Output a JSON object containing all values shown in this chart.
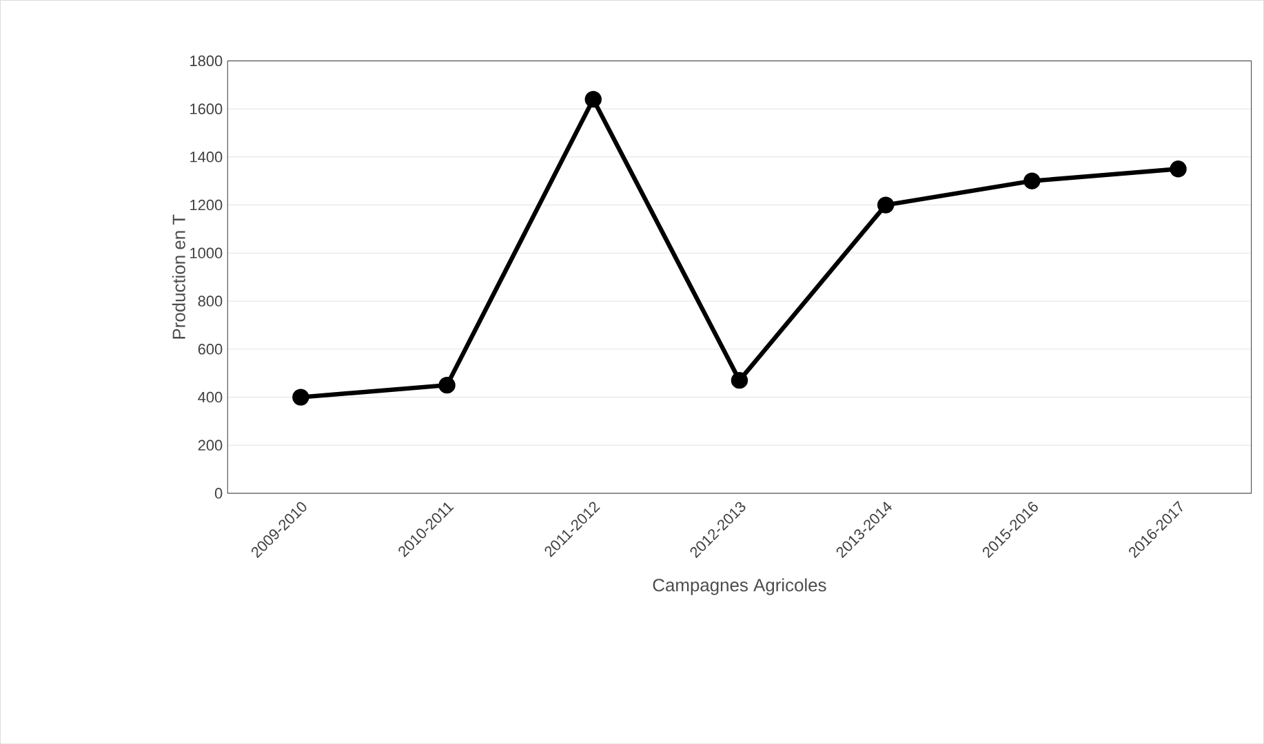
{
  "chart_data": {
    "type": "line",
    "xlabel": "Campagnes Agricoles",
    "ylabel": "Production en T",
    "categories": [
      "2009-2010",
      "2010-2011",
      "2011-2012",
      "2012-2013",
      "2013-2014",
      "2015-2016",
      "2016-2017"
    ],
    "values": [
      400,
      450,
      1640,
      470,
      1200,
      1300,
      1350
    ],
    "color": "#000000",
    "ylim": [
      0,
      1800
    ],
    "yticks": [
      0,
      200,
      400,
      600,
      800,
      1000,
      1200,
      1400,
      1600,
      1800
    ],
    "grid": "y",
    "marker": "circle",
    "line_style": "solid"
  }
}
